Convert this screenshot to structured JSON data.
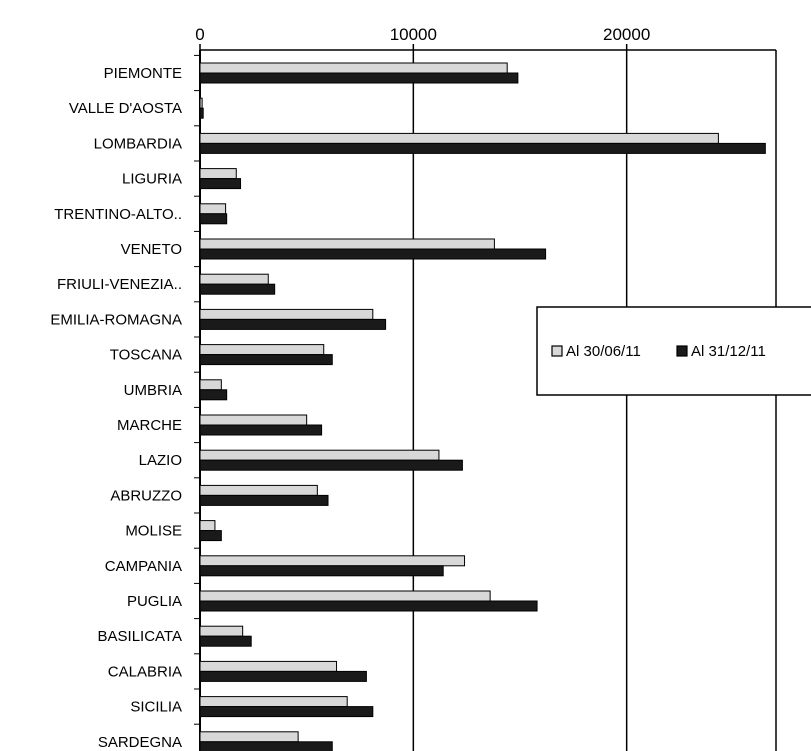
{
  "chart_data": {
    "type": "bar",
    "orientation": "horizontal",
    "categories": [
      "PIEMONTE",
      "VALLE D'AOSTA",
      "LOMBARDIA",
      "LIGURIA",
      "TRENTINO-ALTO..",
      "VENETO",
      "FRIULI-VENEZIA..",
      "EMILIA-ROMAGNA",
      "TOSCANA",
      "UMBRIA",
      "MARCHE",
      "LAZIO",
      "ABRUZZO",
      "MOLISE",
      "CAMPANIA",
      "PUGLIA",
      "BASILICATA",
      "CALABRIA",
      "SICILIA",
      "SARDEGNA"
    ],
    "series": [
      {
        "name": "Al 30/06/11",
        "color": "#d8d8d8",
        "values": [
          14400,
          100,
          24300,
          1700,
          1200,
          13800,
          3200,
          8100,
          5800,
          1000,
          5000,
          11200,
          5500,
          700,
          12400,
          13600,
          2000,
          6400,
          6900,
          4600
        ]
      },
      {
        "name": "Al 31/12/11",
        "color": "#1a1a1a",
        "values": [
          14900,
          150,
          26500,
          1900,
          1250,
          16200,
          3500,
          8700,
          6200,
          1250,
          5700,
          12300,
          6000,
          1000,
          11400,
          15800,
          2400,
          7800,
          8100,
          6200
        ]
      }
    ],
    "xticks": [
      "0",
      "10000",
      "20000"
    ],
    "xlim": [
      0,
      27000
    ],
    "grid": true,
    "legend_position": "right"
  }
}
